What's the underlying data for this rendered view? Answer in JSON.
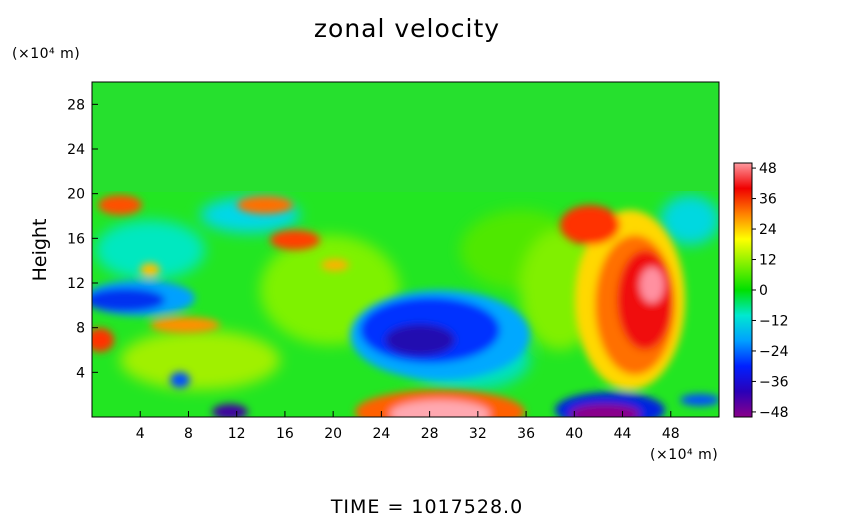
{
  "chart_data": {
    "type": "heatmap",
    "title": "zonal velocity",
    "ylabel": "Height",
    "xlabel": "",
    "x_unit": "(×10⁴ m)",
    "y_unit": "(×10⁴ m)",
    "xlim": [
      0,
      52
    ],
    "ylim": [
      0,
      30
    ],
    "x_ticks": [
      "4",
      "8",
      "12",
      "16",
      "20",
      "24",
      "28",
      "32",
      "36",
      "40",
      "44",
      "48"
    ],
    "y_ticks": [
      "4",
      "8",
      "12",
      "16",
      "20",
      "24",
      "28"
    ],
    "colorbar_ticks": [
      "48",
      "36",
      "24",
      "12",
      "0",
      "−12",
      "−24",
      "−36",
      "−48"
    ],
    "colorbar_range": [
      -50,
      50
    ],
    "value_range_shown": [
      -48,
      48
    ],
    "uniform_above_height": 20,
    "uniform_value": 0,
    "notable_features": [
      {
        "x": 29,
        "y": 7.5,
        "value": -38
      },
      {
        "x": 45,
        "y": 11,
        "value": 42
      },
      {
        "x": 28,
        "y": 0.5,
        "value": 42
      },
      {
        "x": 42,
        "y": 1,
        "value": -48
      },
      {
        "x": 3,
        "y": 10.5,
        "value": -32
      },
      {
        "x": 2,
        "y": 19,
        "value": 30
      },
      {
        "x": 17,
        "y": 16,
        "value": 32
      }
    ],
    "time_label": "TIME  =  1017528.0"
  }
}
